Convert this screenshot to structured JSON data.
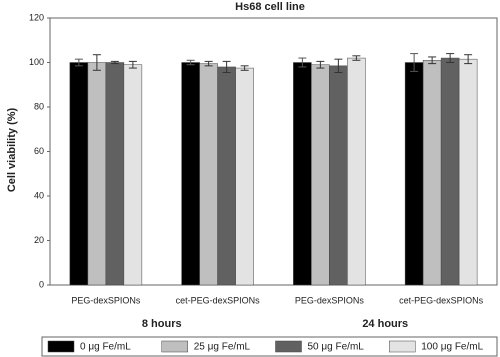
{
  "chart_data": {
    "type": "bar",
    "title": "Hs68 cell line",
    "y_label": "Cell viability (%)",
    "categories": [
      "PEG-dexSPIONs",
      "cet-PEG-dexSPIONs",
      "PEG-dexSPIONs",
      "cet-PEG-dexSPIONs"
    ],
    "group_labels": [
      "8 hours",
      "24 hours"
    ],
    "series": [
      {
        "name": "0 μg Fe/mL",
        "color": "#000000",
        "values": [
          100,
          100,
          100,
          100
        ],
        "errors": [
          1.5,
          1,
          2,
          4
        ]
      },
      {
        "name": "25 μg Fe/mL",
        "color": "#bfbfbf",
        "values": [
          100,
          99.5,
          99,
          101
        ],
        "errors": [
          3.5,
          1,
          1.5,
          1.5
        ]
      },
      {
        "name": "50 μg Fe/mL",
        "color": "#616161",
        "values": [
          100,
          98,
          98.5,
          102
        ],
        "errors": [
          0.5,
          2.5,
          3,
          2
        ]
      },
      {
        "name": "100 μg Fe/mL",
        "color": "#e3e3e3",
        "values": [
          99,
          97.5,
          102,
          101.5
        ],
        "errors": [
          1.5,
          1,
          1,
          2
        ]
      }
    ],
    "ylim": [
      0,
      120
    ],
    "yticks": [
      0,
      20,
      40,
      60,
      80,
      100,
      120
    ]
  }
}
